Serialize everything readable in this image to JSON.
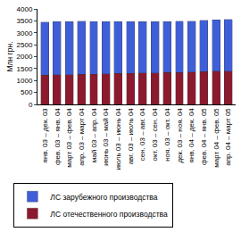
{
  "chart_data": {
    "type": "bar",
    "stacked": true,
    "y_label": "Млн грн.",
    "categories": [
      "янв. 03 – дек. 03",
      "фев. 03 – янв. 04",
      "март 03 – фев. 04",
      "апр. 03 – март 04",
      "май 03 – апр. 04",
      "июнь 03 – май 04",
      "июль 03 – июнь 04",
      "авг. 03 – июль 04",
      "сен. 03 – авг. 04",
      "окт. 03 – сен. 04",
      "ноя. 03 – окт. 04",
      "дек. 03 – ноя. 04",
      "янв. 04 – дек. 04",
      "фев. 04 – янв. 05",
      "март 04 – фев. 05",
      "апр. 04 – март 05"
    ],
    "series": [
      {
        "name": "ЛС зарубежного производства",
        "color": "#3f5fd8",
        "values": [
          2220,
          2220,
          2220,
          2220,
          2200,
          2180,
          2170,
          2160,
          2150,
          2150,
          2140,
          2140,
          2140,
          2150,
          2150,
          2160
        ]
      },
      {
        "name": "ЛС отечественного производства",
        "color": "#8b1a2e",
        "values": [
          1230,
          1240,
          1250,
          1260,
          1270,
          1280,
          1290,
          1300,
          1310,
          1320,
          1330,
          1340,
          1350,
          1370,
          1390,
          1400
        ]
      }
    ],
    "ylim": [
      0,
      4000
    ],
    "yticks": [
      0,
      500,
      1000,
      1500,
      2000,
      2500,
      3000,
      3500,
      4000
    ],
    "grid": false,
    "legend": "bottom"
  }
}
